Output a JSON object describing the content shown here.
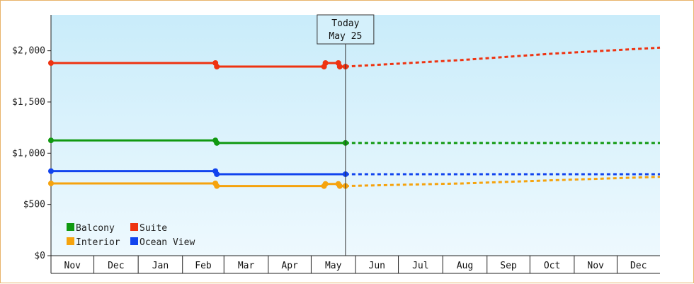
{
  "chart_data": {
    "type": "line",
    "title": "",
    "xlabel": "",
    "ylabel": "",
    "ylim": [
      0,
      2350
    ],
    "y_ticks": [
      {
        "value": 0,
        "label": "$0"
      },
      {
        "value": 500,
        "label": "$500"
      },
      {
        "value": 1000,
        "label": "$1,000"
      },
      {
        "value": 1500,
        "label": "$1,500"
      },
      {
        "value": 2000,
        "label": "$2,000"
      }
    ],
    "x_range": [
      "2023-11-01",
      "2024-12-31"
    ],
    "months": [
      {
        "label": "Nov",
        "start": "2023-11-01",
        "end": "2023-12-01"
      },
      {
        "label": "Dec",
        "start": "2023-12-01",
        "end": "2024-01-01"
      },
      {
        "label": "Jan",
        "start": "2024-01-01",
        "end": "2024-02-01"
      },
      {
        "label": "Feb",
        "start": "2024-02-01",
        "end": "2024-03-01"
      },
      {
        "label": "Mar",
        "start": "2024-03-01",
        "end": "2024-04-01"
      },
      {
        "label": "Apr",
        "start": "2024-04-01",
        "end": "2024-05-01"
      },
      {
        "label": "May",
        "start": "2024-05-01",
        "end": "2024-06-01"
      },
      {
        "label": "Jun",
        "start": "2024-06-01",
        "end": "2024-07-01"
      },
      {
        "label": "Jul",
        "start": "2024-07-01",
        "end": "2024-08-01"
      },
      {
        "label": "Aug",
        "start": "2024-08-01",
        "end": "2024-09-01"
      },
      {
        "label": "Sep",
        "start": "2024-09-01",
        "end": "2024-10-01"
      },
      {
        "label": "Oct",
        "start": "2024-10-01",
        "end": "2024-11-01"
      },
      {
        "label": "Nov",
        "start": "2024-11-01",
        "end": "2024-12-01"
      },
      {
        "label": "Dec",
        "start": "2024-12-01",
        "end": "2024-12-31"
      }
    ],
    "today": {
      "line1": "Today",
      "line2": "May 25",
      "date": "2024-05-25"
    },
    "legend": {
      "placement": "bottom-left"
    },
    "series": [
      {
        "name": "Balcony",
        "color": "#119911",
        "history": [
          [
            "2023-11-01",
            1125
          ],
          [
            "2024-02-24",
            1125
          ],
          [
            "2024-02-25",
            1100
          ],
          [
            "2024-05-25",
            1100
          ]
        ],
        "markers": [
          [
            "2023-11-01",
            1125
          ],
          [
            "2024-02-24",
            1125
          ],
          [
            "2024-02-25",
            1100
          ],
          [
            "2024-05-25",
            1100
          ]
        ],
        "forecast": [
          [
            "2024-05-25",
            1100
          ],
          [
            "2024-12-31",
            1100
          ]
        ]
      },
      {
        "name": "Suite",
        "color": "#ee3311",
        "history": [
          [
            "2023-11-01",
            1880
          ],
          [
            "2024-02-24",
            1880
          ],
          [
            "2024-02-25",
            1845
          ],
          [
            "2024-05-10",
            1845
          ],
          [
            "2024-05-11",
            1880
          ],
          [
            "2024-05-20",
            1880
          ],
          [
            "2024-05-21",
            1845
          ],
          [
            "2024-05-25",
            1845
          ]
        ],
        "markers": [
          [
            "2023-11-01",
            1880
          ],
          [
            "2024-02-24",
            1880
          ],
          [
            "2024-02-25",
            1845
          ],
          [
            "2024-05-10",
            1845
          ],
          [
            "2024-05-11",
            1880
          ],
          [
            "2024-05-20",
            1880
          ],
          [
            "2024-05-21",
            1845
          ],
          [
            "2024-05-25",
            1845
          ]
        ],
        "forecast": [
          [
            "2024-05-25",
            1845
          ],
          [
            "2024-08-15",
            1910
          ],
          [
            "2024-10-15",
            1970
          ],
          [
            "2024-12-31",
            2030
          ]
        ]
      },
      {
        "name": "Interior",
        "color": "#f5a30e",
        "history": [
          [
            "2023-11-01",
            705
          ],
          [
            "2024-02-24",
            705
          ],
          [
            "2024-02-25",
            680
          ],
          [
            "2024-05-10",
            680
          ],
          [
            "2024-05-11",
            700
          ],
          [
            "2024-05-20",
            700
          ],
          [
            "2024-05-21",
            680
          ],
          [
            "2024-05-25",
            680
          ]
        ],
        "markers": [
          [
            "2023-11-01",
            705
          ],
          [
            "2024-02-24",
            705
          ],
          [
            "2024-02-25",
            680
          ],
          [
            "2024-05-10",
            680
          ],
          [
            "2024-05-11",
            700
          ],
          [
            "2024-05-20",
            700
          ],
          [
            "2024-05-21",
            680
          ],
          [
            "2024-05-25",
            680
          ]
        ],
        "forecast": [
          [
            "2024-05-25",
            680
          ],
          [
            "2024-08-15",
            705
          ],
          [
            "2024-10-15",
            735
          ],
          [
            "2024-12-31",
            770
          ]
        ]
      },
      {
        "name": "Ocean View",
        "color": "#1144ee",
        "history": [
          [
            "2023-11-01",
            825
          ],
          [
            "2024-02-24",
            825
          ],
          [
            "2024-02-25",
            795
          ],
          [
            "2024-05-25",
            795
          ]
        ],
        "markers": [
          [
            "2023-11-01",
            825
          ],
          [
            "2024-02-24",
            825
          ],
          [
            "2024-02-25",
            795
          ],
          [
            "2024-05-25",
            795
          ]
        ],
        "forecast": [
          [
            "2024-05-25",
            795
          ],
          [
            "2024-12-31",
            795
          ]
        ]
      }
    ]
  }
}
